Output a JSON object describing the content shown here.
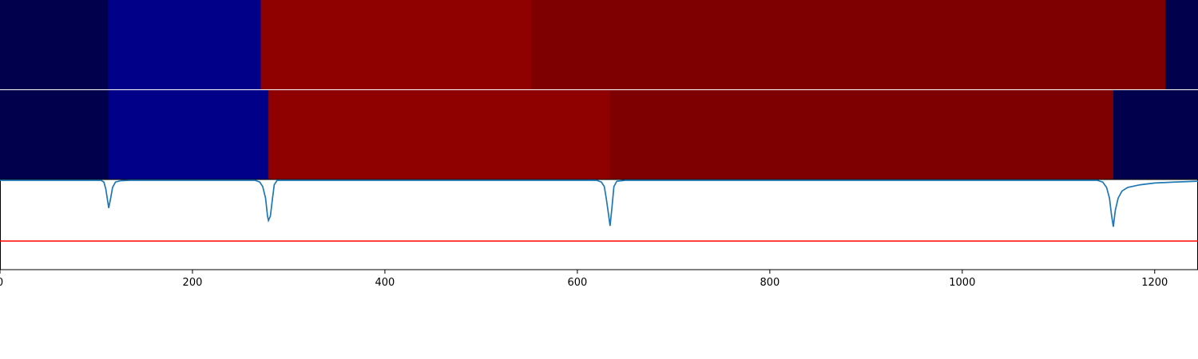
{
  "chart_data": [
    {
      "type": "heatmap",
      "panel": "top",
      "x_range": [
        0,
        1245
      ],
      "segments": [
        {
          "start": 0,
          "end": 112,
          "color": "#00004c"
        },
        {
          "start": 112,
          "end": 271,
          "color": "#000089"
        },
        {
          "start": 271,
          "end": 552,
          "color": "#8f0000"
        },
        {
          "start": 552,
          "end": 1211,
          "color": "#7f0000"
        },
        {
          "start": 1211,
          "end": 1245,
          "color": "#00004c"
        }
      ]
    },
    {
      "type": "heatmap",
      "panel": "middle",
      "x_range": [
        0,
        1245
      ],
      "segments": [
        {
          "start": 0,
          "end": 113,
          "color": "#00004c"
        },
        {
          "start": 113,
          "end": 279,
          "color": "#000089"
        },
        {
          "start": 279,
          "end": 634,
          "color": "#8f0000"
        },
        {
          "start": 634,
          "end": 1157,
          "color": "#7f0000"
        },
        {
          "start": 1157,
          "end": 1245,
          "color": "#00004c"
        }
      ]
    },
    {
      "type": "line",
      "panel": "bottom",
      "xlim": [
        0,
        1245
      ],
      "ylim": [
        0,
        1
      ],
      "grid": false,
      "line_color": "#1f77b4",
      "threshold_color": "#ff0000",
      "threshold": 0.32,
      "xticks": [
        0,
        200,
        400,
        600,
        800,
        1000,
        1200
      ],
      "xtick_labels": [
        "0",
        "200",
        "400",
        "600",
        "800",
        "1000",
        "1200"
      ],
      "baseline": 1.0,
      "dips": [
        {
          "x": 113,
          "min": 0.69,
          "width": 4
        },
        {
          "x": 279,
          "min": 0.55,
          "width": 5
        },
        {
          "x": 634,
          "min": 0.49,
          "width": 5
        },
        {
          "x": 1157,
          "min": 0.48,
          "width": 7
        }
      ],
      "points": [
        [
          0,
          1.0
        ],
        [
          105,
          1.0
        ],
        [
          108,
          0.98
        ],
        [
          110,
          0.9
        ],
        [
          112,
          0.76
        ],
        [
          113,
          0.69
        ],
        [
          115,
          0.8
        ],
        [
          117,
          0.92
        ],
        [
          120,
          0.98
        ],
        [
          125,
          0.995
        ],
        [
          135,
          1.0
        ],
        [
          265,
          1.0
        ],
        [
          270,
          0.98
        ],
        [
          273,
          0.93
        ],
        [
          276,
          0.8
        ],
        [
          278,
          0.6
        ],
        [
          279,
          0.55
        ],
        [
          281,
          0.6
        ],
        [
          283,
          0.78
        ],
        [
          285,
          0.95
        ],
        [
          288,
          1.0
        ],
        [
          620,
          1.0
        ],
        [
          625,
          0.98
        ],
        [
          628,
          0.93
        ],
        [
          630,
          0.8
        ],
        [
          632,
          0.65
        ],
        [
          634,
          0.49
        ],
        [
          636,
          0.7
        ],
        [
          638,
          0.93
        ],
        [
          641,
          0.99
        ],
        [
          650,
          1.0
        ],
        [
          1140,
          1.0
        ],
        [
          1146,
          0.98
        ],
        [
          1150,
          0.92
        ],
        [
          1153,
          0.8
        ],
        [
          1155,
          0.62
        ],
        [
          1157,
          0.48
        ],
        [
          1159,
          0.66
        ],
        [
          1162,
          0.8
        ],
        [
          1166,
          0.88
        ],
        [
          1172,
          0.92
        ],
        [
          1185,
          0.95
        ],
        [
          1200,
          0.97
        ],
        [
          1220,
          0.98
        ],
        [
          1245,
          0.99
        ]
      ]
    }
  ]
}
